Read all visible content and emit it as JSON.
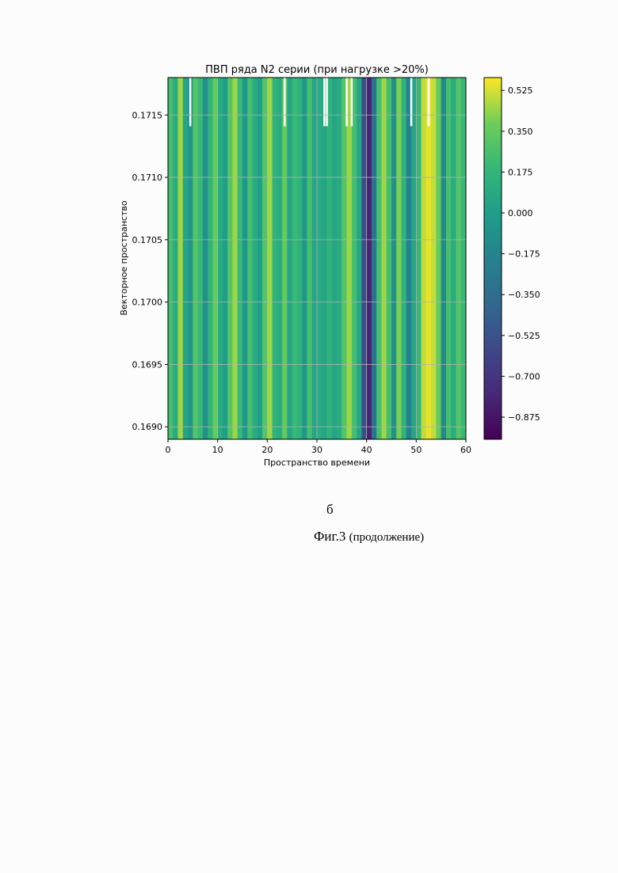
{
  "chart_data": {
    "type": "heatmap",
    "title": "ПВП ряда N2 серии (при нагрузке >20%)",
    "xlabel": "Пространство времени",
    "ylabel": "Векторное пространство",
    "xlim": [
      0,
      60
    ],
    "ylim": [
      0.1689,
      0.1718
    ],
    "xticks": [
      "0",
      "10",
      "20",
      "30",
      "40",
      "50",
      "60"
    ],
    "yticks": [
      "0.1690",
      "0.1695",
      "0.1700",
      "0.1705",
      "0.1710",
      "0.1715"
    ],
    "grid": true,
    "colormap": "viridis",
    "colorbar": {
      "range": [
        -0.97,
        0.58
      ],
      "ticks": [
        "0.525",
        "0.350",
        "0.175",
        "0.000",
        "−0.175",
        "−0.350",
        "−0.525",
        "−0.700",
        "−0.875"
      ]
    },
    "x": [
      0.5,
      1.5,
      2.5,
      3.5,
      4.5,
      5.5,
      6.5,
      7.5,
      8.5,
      9.5,
      10.5,
      11.5,
      12.5,
      13.5,
      14.5,
      15.5,
      16.5,
      17.5,
      18.5,
      19.5,
      20.5,
      21.5,
      22.5,
      23.5,
      24.5,
      25.5,
      26.5,
      27.5,
      28.5,
      29.5,
      30.5,
      31.5,
      32.5,
      33.5,
      34.5,
      35.5,
      36.5,
      37.5,
      38.5,
      39.5,
      40.5,
      41.5,
      42.5,
      43.5,
      44.5,
      45.5,
      46.5,
      47.5,
      48.5,
      49.5,
      50.5,
      51.5,
      52.5,
      53.5,
      54.5,
      55.5,
      56.5,
      57.5,
      58.5,
      59.5
    ],
    "values": [
      0.25,
      0.1,
      0.45,
      0.05,
      -0.05,
      0.3,
      0.2,
      -0.1,
      0.15,
      0.35,
      0.1,
      0.0,
      0.3,
      0.45,
      0.2,
      -0.05,
      0.25,
      0.1,
      0.0,
      0.3,
      0.45,
      0.15,
      0.1,
      0.35,
      0.05,
      0.2,
      0.15,
      -0.05,
      0.25,
      0.05,
      0.1,
      0.05,
      0.15,
      0.05,
      0.1,
      0.3,
      0.45,
      0.25,
      0.05,
      -0.55,
      -0.8,
      -0.3,
      0.25,
      0.45,
      0.25,
      -0.1,
      0.4,
      0.15,
      -0.2,
      0.05,
      0.2,
      0.5,
      0.55,
      0.5,
      0.35,
      -0.15,
      0.25,
      0.1,
      0.3,
      0.2
    ],
    "missing_top": [
      4.5,
      23.5,
      31.5,
      32.0,
      36.0,
      37.0,
      49.0,
      52.5
    ]
  },
  "captions": {
    "letter": "б",
    "fig": "Фиг.3",
    "fig_note": "(продолжение)"
  }
}
